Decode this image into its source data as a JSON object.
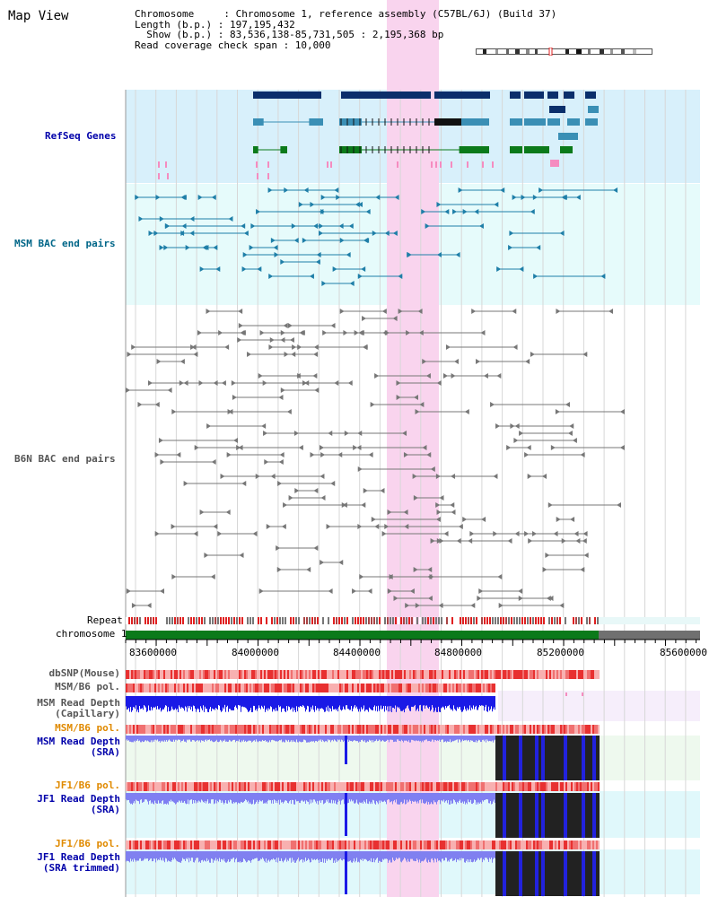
{
  "title": "Map View",
  "header": {
    "chromosome": "Chromosome     : Chromosome 1, reference assembly (C57BL/6J) (Build 37)",
    "length": "Length (b.p.) : 197,195,432",
    "show": "  Show (b.p.) : 83,536,138-85,731,505 : 2,195,368 bp",
    "span": "Read coverage check span : 10,000"
  },
  "tracks": {
    "refseq": "RefSeq Genes",
    "msm_bac": "MSM BAC end pairs",
    "b6n_bac": "B6N BAC end pairs",
    "repeat": "Repeat",
    "chromosome": "chromosome 1",
    "dbsnp": "dbSNP(Mouse)",
    "msm_b6_pol": "MSM/B6 pol.",
    "msm_depth_cap_1": "MSM Read Depth",
    "msm_depth_cap_2": "(Capillary)",
    "msm_b6_pol2": "MSM/B6 pol.",
    "msm_depth_sra_1": "MSM Read Depth",
    "msm_depth_sra_2": "(SRA)",
    "jf1_b6_pol": "JF1/B6 pol.",
    "jf1_depth_sra_1": "JF1 Read Depth",
    "jf1_depth_sra_2": "(SRA)",
    "jf1_b6_pol2": "JF1/B6 pol.",
    "jf1_depth_trim_1": "JF1 Read Depth",
    "jf1_depth_trim_2": "(SRA trimmed)"
  },
  "axis": {
    "ticks": [
      "83600000",
      "84000000",
      "84400000",
      "84800000",
      "85200000",
      "85600000"
    ]
  },
  "colors": {
    "refseq_bg": "#d8f0fb",
    "msm_bac_bg": "#e6fbfb",
    "highlight": "#f9d4ee",
    "gene_navy": "#0b2f6b",
    "gene_teal": "#3a8fb5",
    "gene_green": "#0b7a1a",
    "chromosome_green": "#0b7a1a",
    "chromosome_grey": "#707070",
    "depth_blue": "#1a1ae6",
    "depth_light": "#7a7af0"
  }
}
